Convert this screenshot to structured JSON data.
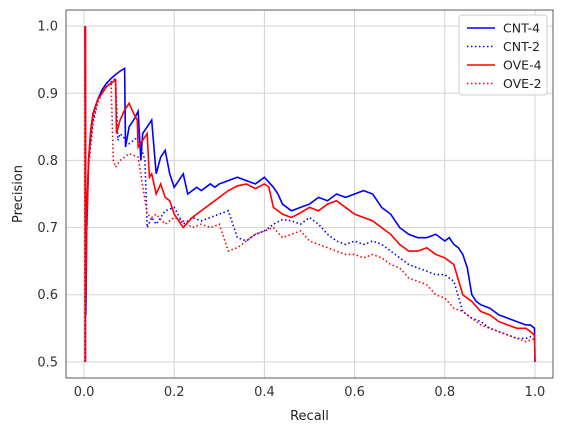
{
  "chart_data": {
    "type": "line",
    "title": "",
    "xlabel": "Recall",
    "ylabel": "Precision",
    "xlim": [
      -0.04,
      1.04
    ],
    "ylim": [
      0.476,
      1.024
    ],
    "xticks": [
      0.0,
      0.2,
      0.4,
      0.6,
      0.8,
      1.0
    ],
    "xtick_labels": [
      "0.0",
      "0.2",
      "0.4",
      "0.6",
      "0.8",
      "1.0"
    ],
    "yticks": [
      0.5,
      0.6,
      0.7,
      0.8,
      0.9,
      1.0
    ],
    "ytick_labels": [
      "0.5",
      "0.6",
      "0.7",
      "0.8",
      "0.9",
      "1.0"
    ],
    "grid": true,
    "legend_position": "top-right",
    "series": [
      {
        "name": "CNT-4",
        "color": "#0000ff",
        "linestyle": "solid",
        "x": [
          0.003,
          0.003,
          0.004,
          0.006,
          0.01,
          0.015,
          0.02,
          0.03,
          0.04,
          0.05,
          0.06,
          0.07,
          0.08,
          0.09,
          0.092,
          0.1,
          0.11,
          0.12,
          0.126,
          0.13,
          0.14,
          0.145,
          0.15,
          0.16,
          0.17,
          0.18,
          0.19,
          0.195,
          0.2,
          0.22,
          0.23,
          0.25,
          0.26,
          0.28,
          0.29,
          0.3,
          0.32,
          0.34,
          0.36,
          0.38,
          0.4,
          0.42,
          0.43,
          0.44,
          0.46,
          0.48,
          0.5,
          0.52,
          0.54,
          0.56,
          0.58,
          0.6,
          0.62,
          0.64,
          0.65,
          0.66,
          0.68,
          0.7,
          0.72,
          0.74,
          0.76,
          0.78,
          0.8,
          0.81,
          0.82,
          0.83,
          0.84,
          0.85,
          0.86,
          0.87,
          0.88,
          0.9,
          0.92,
          0.94,
          0.96,
          0.98,
          0.99,
          0.999,
          1.0
        ],
        "y": [
          0.5,
          1.0,
          0.57,
          0.7,
          0.8,
          0.845,
          0.87,
          0.89,
          0.905,
          0.915,
          0.922,
          0.928,
          0.933,
          0.937,
          0.82,
          0.85,
          0.86,
          0.873,
          0.8,
          0.84,
          0.85,
          0.855,
          0.86,
          0.78,
          0.805,
          0.815,
          0.78,
          0.77,
          0.76,
          0.78,
          0.75,
          0.76,
          0.755,
          0.765,
          0.76,
          0.765,
          0.77,
          0.775,
          0.77,
          0.765,
          0.775,
          0.76,
          0.75,
          0.735,
          0.725,
          0.73,
          0.735,
          0.745,
          0.74,
          0.75,
          0.745,
          0.75,
          0.755,
          0.75,
          0.74,
          0.73,
          0.72,
          0.7,
          0.69,
          0.685,
          0.685,
          0.69,
          0.68,
          0.685,
          0.675,
          0.67,
          0.66,
          0.64,
          0.6,
          0.59,
          0.585,
          0.58,
          0.57,
          0.565,
          0.56,
          0.555,
          0.555,
          0.55,
          0.5
        ]
      },
      {
        "name": "CNT-2",
        "color": "#0000ff",
        "linestyle": "dotted",
        "x": [
          0.002,
          0.002,
          0.004,
          0.01,
          0.02,
          0.03,
          0.04,
          0.05,
          0.06,
          0.07,
          0.075,
          0.08,
          0.1,
          0.12,
          0.135,
          0.14,
          0.15,
          0.16,
          0.18,
          0.2,
          0.22,
          0.24,
          0.26,
          0.28,
          0.3,
          0.32,
          0.34,
          0.36,
          0.38,
          0.4,
          0.42,
          0.44,
          0.46,
          0.48,
          0.5,
          0.52,
          0.54,
          0.56,
          0.58,
          0.6,
          0.62,
          0.64,
          0.66,
          0.68,
          0.7,
          0.72,
          0.74,
          0.76,
          0.78,
          0.8,
          0.82,
          0.84,
          0.85,
          0.86,
          0.88,
          0.9,
          0.92,
          0.94,
          0.96,
          0.98,
          1.0
        ],
        "y": [
          0.5,
          1.0,
          0.65,
          0.8,
          0.86,
          0.89,
          0.905,
          0.915,
          0.917,
          0.922,
          0.83,
          0.84,
          0.825,
          0.835,
          0.8,
          0.7,
          0.715,
          0.705,
          0.725,
          0.73,
          0.705,
          0.715,
          0.71,
          0.715,
          0.72,
          0.725,
          0.685,
          0.68,
          0.69,
          0.695,
          0.705,
          0.712,
          0.71,
          0.705,
          0.715,
          0.705,
          0.69,
          0.68,
          0.675,
          0.68,
          0.675,
          0.68,
          0.675,
          0.665,
          0.655,
          0.645,
          0.64,
          0.635,
          0.63,
          0.63,
          0.62,
          0.575,
          0.57,
          0.565,
          0.56,
          0.55,
          0.545,
          0.54,
          0.535,
          0.535,
          0.54
        ]
      },
      {
        "name": "OVE-4",
        "color": "#ff0000",
        "linestyle": "solid",
        "x": [
          0.003,
          0.003,
          0.004,
          0.006,
          0.01,
          0.015,
          0.02,
          0.03,
          0.04,
          0.05,
          0.06,
          0.07,
          0.072,
          0.08,
          0.09,
          0.1,
          0.11,
          0.118,
          0.12,
          0.13,
          0.14,
          0.145,
          0.15,
          0.16,
          0.17,
          0.18,
          0.19,
          0.2,
          0.22,
          0.24,
          0.26,
          0.28,
          0.3,
          0.32,
          0.34,
          0.36,
          0.38,
          0.4,
          0.41,
          0.42,
          0.44,
          0.46,
          0.48,
          0.5,
          0.52,
          0.54,
          0.56,
          0.58,
          0.6,
          0.62,
          0.64,
          0.66,
          0.68,
          0.7,
          0.72,
          0.74,
          0.76,
          0.78,
          0.8,
          0.82,
          0.84,
          0.86,
          0.88,
          0.9,
          0.92,
          0.94,
          0.96,
          0.98,
          0.99,
          0.999,
          1.0
        ],
        "y": [
          0.5,
          1.0,
          0.6,
          0.72,
          0.8,
          0.845,
          0.87,
          0.89,
          0.9,
          0.91,
          0.915,
          0.92,
          0.84,
          0.86,
          0.875,
          0.885,
          0.87,
          0.86,
          0.82,
          0.83,
          0.84,
          0.775,
          0.78,
          0.75,
          0.765,
          0.745,
          0.74,
          0.72,
          0.7,
          0.715,
          0.725,
          0.735,
          0.745,
          0.755,
          0.762,
          0.765,
          0.758,
          0.765,
          0.76,
          0.73,
          0.72,
          0.715,
          0.722,
          0.73,
          0.725,
          0.735,
          0.74,
          0.73,
          0.72,
          0.715,
          0.71,
          0.7,
          0.69,
          0.675,
          0.665,
          0.665,
          0.67,
          0.66,
          0.655,
          0.645,
          0.6,
          0.59,
          0.575,
          0.57,
          0.56,
          0.555,
          0.55,
          0.55,
          0.545,
          0.54,
          0.5
        ]
      },
      {
        "name": "OVE-2",
        "color": "#ff0000",
        "linestyle": "dotted",
        "x": [
          0.002,
          0.002,
          0.004,
          0.01,
          0.02,
          0.03,
          0.04,
          0.05,
          0.06,
          0.065,
          0.07,
          0.08,
          0.1,
          0.12,
          0.14,
          0.15,
          0.16,
          0.18,
          0.2,
          0.22,
          0.24,
          0.26,
          0.28,
          0.3,
          0.32,
          0.34,
          0.36,
          0.38,
          0.4,
          0.42,
          0.44,
          0.46,
          0.48,
          0.5,
          0.52,
          0.54,
          0.56,
          0.58,
          0.6,
          0.62,
          0.64,
          0.66,
          0.68,
          0.7,
          0.72,
          0.74,
          0.76,
          0.78,
          0.8,
          0.82,
          0.84,
          0.86,
          0.88,
          0.9,
          0.92,
          0.94,
          0.96,
          0.98,
          1.0
        ],
        "y": [
          0.5,
          1.0,
          0.64,
          0.79,
          0.855,
          0.885,
          0.9,
          0.91,
          0.915,
          0.8,
          0.79,
          0.8,
          0.81,
          0.805,
          0.72,
          0.715,
          0.72,
          0.705,
          0.715,
          0.71,
          0.7,
          0.705,
          0.7,
          0.705,
          0.665,
          0.67,
          0.68,
          0.69,
          0.695,
          0.7,
          0.685,
          0.69,
          0.695,
          0.68,
          0.675,
          0.67,
          0.665,
          0.66,
          0.66,
          0.655,
          0.66,
          0.655,
          0.645,
          0.64,
          0.625,
          0.62,
          0.615,
          0.6,
          0.595,
          0.58,
          0.575,
          0.565,
          0.555,
          0.55,
          0.545,
          0.54,
          0.535,
          0.53,
          0.535
        ]
      }
    ]
  }
}
